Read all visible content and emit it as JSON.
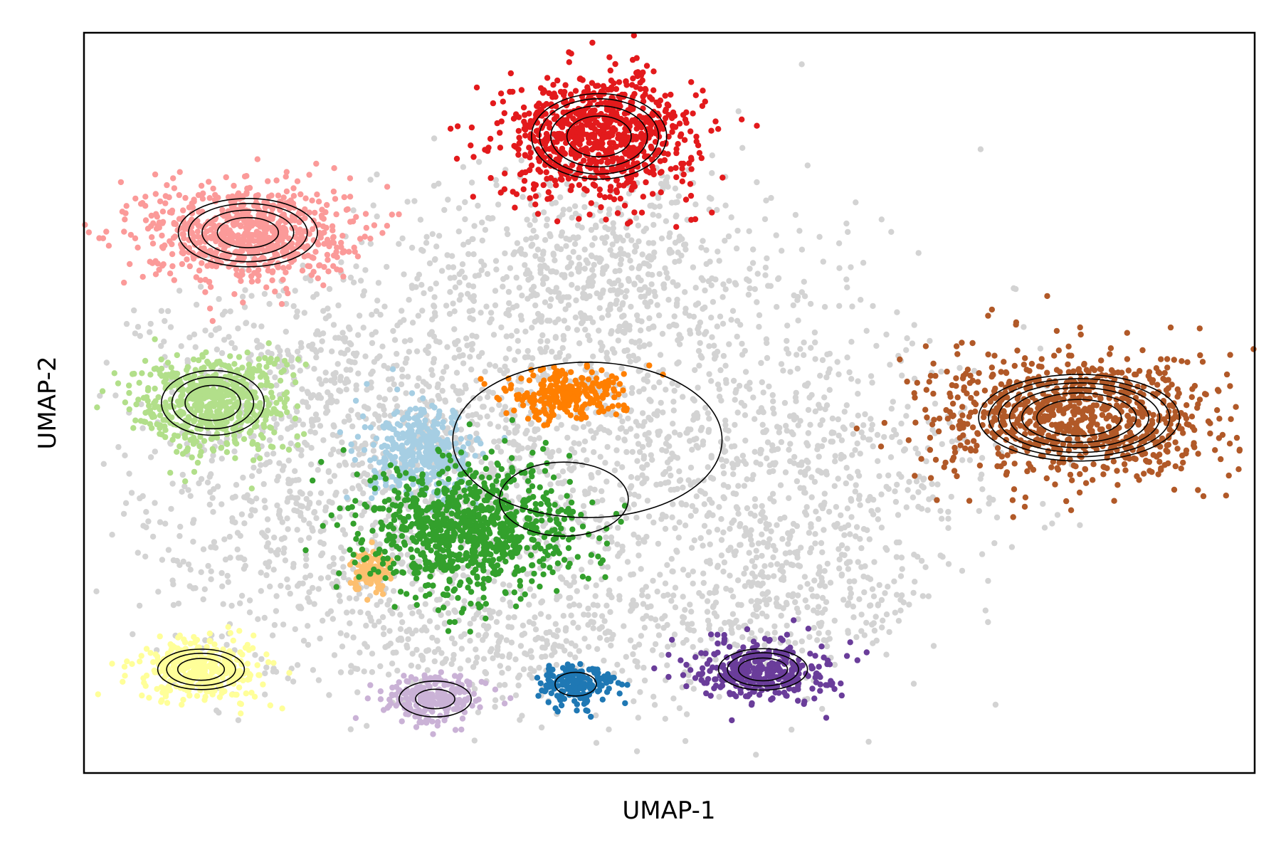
{
  "chart_data": {
    "type": "scatter",
    "title": "",
    "xlabel": "UMAP-1",
    "ylabel": "UMAP-2",
    "xlim": [
      0,
      10
    ],
    "ylim": [
      0,
      10
    ],
    "xticks": [],
    "yticks": [],
    "legend": "none",
    "background_color": "#d3d3d3",
    "contour_color": "#000000",
    "clusters": [
      {
        "color": "#e31a1c",
        "center": [
          4.4,
          8.6
        ],
        "spread": [
          0.55,
          0.55
        ],
        "contour_levels": [
          1.0,
          1.5,
          1.85,
          2.1
        ]
      },
      {
        "color": "#fb9a99",
        "center": [
          1.4,
          7.3
        ],
        "spread": [
          0.58,
          0.45
        ],
        "contour_levels": [
          0.9,
          1.35,
          1.75,
          2.05
        ]
      },
      {
        "color": "#b2df8a",
        "center": [
          1.1,
          5.0
        ],
        "spread": [
          0.45,
          0.45
        ],
        "contour_levels": [
          1.05,
          1.55,
          1.95
        ]
      },
      {
        "color": "#b15928",
        "center": [
          8.5,
          4.8
        ],
        "spread": [
          0.85,
          0.58
        ],
        "contour_levels": [
          0.85,
          1.15,
          1.4,
          1.62,
          1.82,
          2.02
        ]
      },
      {
        "color": "#6a3d9a",
        "center": [
          5.8,
          1.4
        ],
        "spread": [
          0.38,
          0.28
        ],
        "contour_levels": [
          1.1,
          1.6,
          2.0
        ]
      },
      {
        "color": "#ffff99",
        "center": [
          1.0,
          1.4
        ],
        "spread": [
          0.38,
          0.28
        ],
        "contour_levels": [
          1.05,
          1.55,
          1.95
        ]
      },
      {
        "color": "#cab2d6",
        "center": [
          3.0,
          1.0
        ],
        "spread": [
          0.28,
          0.22
        ],
        "contour_levels": [
          1.2,
          2.2
        ]
      },
      {
        "color": "#1f78b4",
        "center": [
          4.2,
          1.2
        ],
        "spread": [
          0.22,
          0.2
        ],
        "contour_levels": [
          1.6
        ]
      },
      {
        "color": "#ff7f00",
        "center": [
          4.1,
          5.1
        ],
        "spread": [
          0.35,
          0.22
        ],
        "contour_levels": []
      },
      {
        "color": "#a6cee3",
        "center": [
          2.9,
          4.3
        ],
        "spread": [
          0.3,
          0.4
        ],
        "contour_levels": []
      },
      {
        "color": "#fdbf6f",
        "center": [
          2.45,
          2.75
        ],
        "spread": [
          0.12,
          0.18
        ],
        "contour_levels": []
      },
      {
        "color": "#33a02c",
        "center": [
          3.3,
          3.3
        ],
        "spread": [
          0.6,
          0.6
        ],
        "contour_levels": []
      }
    ],
    "central_contours": [
      {
        "center": [
          4.1,
          3.7
        ],
        "spread": [
          1.1,
          1.0
        ],
        "level": 1.0
      },
      {
        "center": [
          4.3,
          4.5
        ],
        "spread": [
          2.3,
          2.1
        ],
        "level": 1.0
      }
    ]
  }
}
